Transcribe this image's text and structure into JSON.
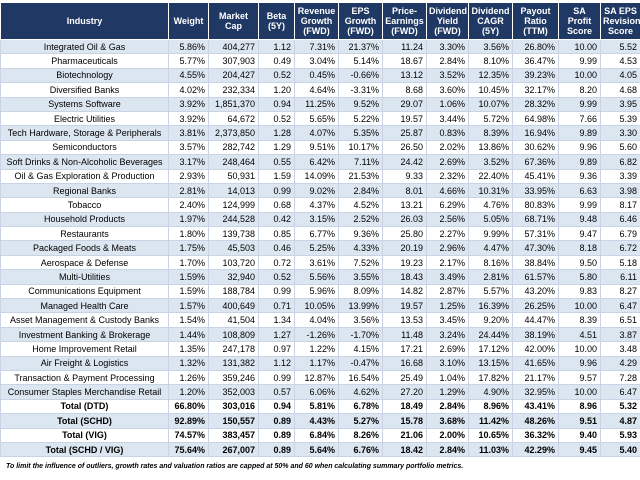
{
  "table": {
    "columns": [
      "Industry",
      "Weight",
      "Market Cap",
      "Beta (5Y)",
      "Revenue Growth (FWD)",
      "EPS Growth (FWD)",
      "Price-Earnings (FWD)",
      "Dividend Yield (FWD)",
      "Dividend CAGR (5Y)",
      "Payout Ratio (TTM)",
      "SA Profit Score",
      "SA EPS Revision Score"
    ],
    "rows": [
      [
        "Integrated Oil & Gas",
        "5.86%",
        "404,277",
        "1.12",
        "7.31%",
        "21.37%",
        "11.24",
        "3.30%",
        "3.56%",
        "26.80%",
        "10.00",
        "5.52"
      ],
      [
        "Pharmaceuticals",
        "5.77%",
        "307,903",
        "0.49",
        "3.04%",
        "5.14%",
        "18.67",
        "2.84%",
        "8.10%",
        "36.47%",
        "9.99",
        "4.53"
      ],
      [
        "Biotechnology",
        "4.55%",
        "204,427",
        "0.52",
        "0.45%",
        "-0.66%",
        "13.12",
        "3.52%",
        "12.35%",
        "39.23%",
        "10.00",
        "4.05"
      ],
      [
        "Diversified Banks",
        "4.02%",
        "232,334",
        "1.20",
        "4.64%",
        "-3.31%",
        "8.68",
        "3.60%",
        "10.45%",
        "32.17%",
        "8.20",
        "4.68"
      ],
      [
        "Systems Software",
        "3.92%",
        "1,851,370",
        "0.94",
        "11.25%",
        "9.52%",
        "29.07",
        "1.06%",
        "10.07%",
        "28.32%",
        "9.99",
        "3.95"
      ],
      [
        "Electric Utilities",
        "3.92%",
        "64,672",
        "0.52",
        "5.65%",
        "5.22%",
        "19.57",
        "3.44%",
        "5.72%",
        "64.98%",
        "7.66",
        "5.39"
      ],
      [
        "Tech Hardware, Storage & Peripherals",
        "3.81%",
        "2,373,850",
        "1.28",
        "4.07%",
        "5.35%",
        "25.87",
        "0.83%",
        "8.39%",
        "16.94%",
        "9.89",
        "3.30"
      ],
      [
        "Semiconductors",
        "3.57%",
        "282,742",
        "1.29",
        "9.51%",
        "10.17%",
        "26.50",
        "2.02%",
        "13.86%",
        "30.62%",
        "9.96",
        "5.60"
      ],
      [
        "Soft Drinks & Non-Alcoholic Beverages",
        "3.17%",
        "248,464",
        "0.55",
        "6.42%",
        "7.11%",
        "24.42",
        "2.69%",
        "3.52%",
        "67.36%",
        "9.89",
        "6.82"
      ],
      [
        "Oil & Gas Exploration & Production",
        "2.93%",
        "50,931",
        "1.59",
        "14.09%",
        "21.53%",
        "9.33",
        "2.32%",
        "22.40%",
        "45.41%",
        "9.36",
        "3.39"
      ],
      [
        "Regional Banks",
        "2.81%",
        "14,013",
        "0.99",
        "9.02%",
        "2.84%",
        "8.01",
        "4.66%",
        "10.31%",
        "33.95%",
        "6.63",
        "3.98"
      ],
      [
        "Tobacco",
        "2.40%",
        "124,999",
        "0.68",
        "4.37%",
        "4.52%",
        "13.21",
        "6.29%",
        "4.76%",
        "80.83%",
        "9.99",
        "8.17"
      ],
      [
        "Household Products",
        "1.97%",
        "244,528",
        "0.42",
        "3.15%",
        "2.52%",
        "26.03",
        "2.56%",
        "5.05%",
        "68.71%",
        "9.48",
        "6.46"
      ],
      [
        "Restaurants",
        "1.80%",
        "139,738",
        "0.85",
        "6.77%",
        "9.36%",
        "25.80",
        "2.27%",
        "9.99%",
        "57.31%",
        "9.47",
        "6.79"
      ],
      [
        "Packaged Foods & Meats",
        "1.75%",
        "45,503",
        "0.46",
        "5.25%",
        "4.33%",
        "20.19",
        "2.96%",
        "4.47%",
        "47.30%",
        "8.18",
        "6.72"
      ],
      [
        "Aerospace & Defense",
        "1.70%",
        "103,720",
        "0.72",
        "3.61%",
        "7.52%",
        "19.23",
        "2.17%",
        "8.16%",
        "38.84%",
        "9.50",
        "5.18"
      ],
      [
        "Multi-Utilities",
        "1.59%",
        "32,940",
        "0.52",
        "5.56%",
        "3.55%",
        "18.43",
        "3.49%",
        "2.81%",
        "61.57%",
        "5.80",
        "6.11"
      ],
      [
        "Communications Equipment",
        "1.59%",
        "188,784",
        "0.99",
        "5.96%",
        "8.09%",
        "14.82",
        "2.87%",
        "5.57%",
        "43.20%",
        "9.83",
        "8.27"
      ],
      [
        "Managed Health Care",
        "1.57%",
        "400,649",
        "0.71",
        "10.05%",
        "13.99%",
        "19.57",
        "1.25%",
        "16.39%",
        "26.25%",
        "10.00",
        "6.47"
      ],
      [
        "Asset Management & Custody Banks",
        "1.54%",
        "41,504",
        "1.34",
        "4.04%",
        "3.56%",
        "13.53",
        "3.45%",
        "9.20%",
        "44.47%",
        "8.39",
        "6.51"
      ],
      [
        "Investment Banking & Brokerage",
        "1.44%",
        "108,809",
        "1.27",
        "-1.26%",
        "-1.70%",
        "11.48",
        "3.24%",
        "24.44%",
        "38.19%",
        "4.51",
        "3.87"
      ],
      [
        "Home Improvement Retail",
        "1.35%",
        "247,178",
        "0.97",
        "1.22%",
        "4.15%",
        "17.21",
        "2.69%",
        "17.12%",
        "42.00%",
        "10.00",
        "3.48"
      ],
      [
        "Air Freight & Logistics",
        "1.32%",
        "131,382",
        "1.12",
        "1.17%",
        "-0.47%",
        "16.68",
        "3.10%",
        "13.15%",
        "41.65%",
        "9.96",
        "4.29"
      ],
      [
        "Transaction & Payment Processing",
        "1.26%",
        "359,246",
        "0.99",
        "12.87%",
        "16.54%",
        "25.49",
        "1.04%",
        "17.82%",
        "21.17%",
        "9.57",
        "7.28"
      ],
      [
        "Consumer Staples Merchandise Retail",
        "1.20%",
        "352,003",
        "0.57",
        "6.06%",
        "4.62%",
        "27.20",
        "1.29%",
        "4.90%",
        "32.95%",
        "10.00",
        "6.47"
      ]
    ],
    "totals": [
      [
        "Total (DTD)",
        "66.80%",
        "303,016",
        "0.94",
        "5.81%",
        "6.78%",
        "18.49",
        "2.84%",
        "8.96%",
        "43.41%",
        "8.96",
        "5.32"
      ],
      [
        "Total (SCHD)",
        "92.89%",
        "150,557",
        "0.89",
        "4.43%",
        "5.27%",
        "15.78",
        "3.68%",
        "11.42%",
        "48.26%",
        "9.51",
        "4.87"
      ],
      [
        "Total (VIG)",
        "74.57%",
        "383,457",
        "0.89",
        "6.84%",
        "8.26%",
        "21.06",
        "2.00%",
        "10.65%",
        "36.32%",
        "9.40",
        "5.93"
      ],
      [
        "Total (SCHD / VIG)",
        "75.64%",
        "267,007",
        "0.89",
        "5.64%",
        "6.76%",
        "18.42",
        "2.84%",
        "11.03%",
        "42.29%",
        "9.45",
        "5.40"
      ]
    ]
  },
  "footnote": "To limit the influence of outliers, growth rates and valuation ratios are capped at 50% and 60 when calculating summary portfolio metrics."
}
